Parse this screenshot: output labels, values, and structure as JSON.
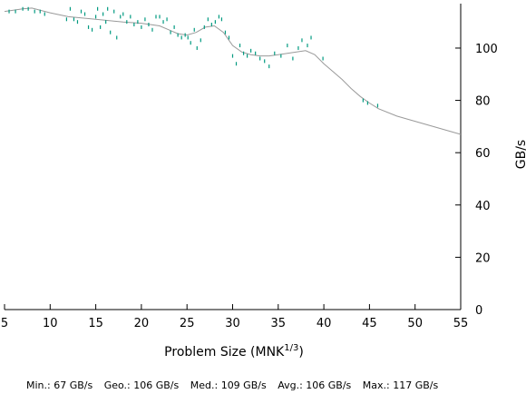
{
  "chart_data": {
    "type": "scatter",
    "xlabel_main": "Problem Size (MNK",
    "xlabel_sup": "1/3",
    "xlabel_close": ")",
    "ylabel": "GB/s",
    "xlim": [
      5,
      55
    ],
    "ylim": [
      0,
      117
    ],
    "x_ticks": [
      5,
      10,
      15,
      20,
      25,
      30,
      35,
      40,
      45,
      50,
      55
    ],
    "y_ticks": [
      0,
      20,
      40,
      60,
      80,
      100
    ],
    "grid": false,
    "y_axis_side": "right",
    "colors": {
      "points": "#009a80",
      "curve": "#9a9a9a",
      "axes": "#000000"
    },
    "points": [
      [
        5.5,
        114
      ],
      [
        6.2,
        114
      ],
      [
        7.0,
        115
      ],
      [
        7.6,
        115
      ],
      [
        8.3,
        114
      ],
      [
        8.9,
        114
      ],
      [
        9.4,
        113
      ],
      [
        11.8,
        111
      ],
      [
        12.2,
        115
      ],
      [
        12.6,
        111
      ],
      [
        13.0,
        110
      ],
      [
        13.4,
        114
      ],
      [
        13.8,
        113
      ],
      [
        14.2,
        108
      ],
      [
        14.6,
        107
      ],
      [
        15.0,
        112
      ],
      [
        15.2,
        115
      ],
      [
        15.5,
        108
      ],
      [
        15.8,
        113
      ],
      [
        16.1,
        110
      ],
      [
        16.3,
        115
      ],
      [
        16.6,
        106
      ],
      [
        17.0,
        114
      ],
      [
        17.3,
        104
      ],
      [
        17.7,
        112
      ],
      [
        18.0,
        113
      ],
      [
        18.4,
        110
      ],
      [
        18.8,
        112
      ],
      [
        19.2,
        109
      ],
      [
        19.6,
        110
      ],
      [
        20.0,
        108
      ],
      [
        20.4,
        111
      ],
      [
        20.8,
        109
      ],
      [
        21.2,
        107
      ],
      [
        21.6,
        112
      ],
      [
        22.0,
        112
      ],
      [
        22.4,
        110
      ],
      [
        22.8,
        111
      ],
      [
        23.2,
        106
      ],
      [
        23.6,
        108
      ],
      [
        24.0,
        105
      ],
      [
        24.4,
        104
      ],
      [
        24.8,
        105
      ],
      [
        25.1,
        104
      ],
      [
        25.4,
        102
      ],
      [
        25.8,
        107
      ],
      [
        26.1,
        100
      ],
      [
        26.5,
        103
      ],
      [
        26.9,
        108
      ],
      [
        27.3,
        111
      ],
      [
        27.7,
        109
      ],
      [
        28.1,
        110
      ],
      [
        28.5,
        112
      ],
      [
        28.8,
        111
      ],
      [
        29.2,
        106
      ],
      [
        29.6,
        104
      ],
      [
        30.0,
        97
      ],
      [
        30.4,
        94
      ],
      [
        30.8,
        101
      ],
      [
        31.2,
        98
      ],
      [
        31.6,
        97
      ],
      [
        32.0,
        99
      ],
      [
        32.5,
        98
      ],
      [
        33.0,
        96
      ],
      [
        33.5,
        95
      ],
      [
        34.0,
        93
      ],
      [
        34.6,
        98
      ],
      [
        35.3,
        97
      ],
      [
        36.0,
        101
      ],
      [
        36.6,
        96
      ],
      [
        37.2,
        100
      ],
      [
        37.6,
        103
      ],
      [
        38.2,
        101
      ],
      [
        38.6,
        104
      ],
      [
        39.9,
        96
      ],
      [
        44.3,
        80
      ],
      [
        44.8,
        79
      ],
      [
        45.9,
        78
      ]
    ],
    "curve": [
      [
        5.0,
        114
      ],
      [
        7.0,
        115
      ],
      [
        8.0,
        115.3
      ],
      [
        10.0,
        113.5
      ],
      [
        12.0,
        112
      ],
      [
        15.0,
        111
      ],
      [
        18.0,
        110
      ],
      [
        20.0,
        109.5
      ],
      [
        22.0,
        108.5
      ],
      [
        23.0,
        107
      ],
      [
        24.0,
        105.5
      ],
      [
        25.0,
        105
      ],
      [
        26.0,
        106
      ],
      [
        27.0,
        108
      ],
      [
        28.0,
        108.5
      ],
      [
        29.0,
        106
      ],
      [
        30.0,
        101
      ],
      [
        31.0,
        98.5
      ],
      [
        32.0,
        97.5
      ],
      [
        33.0,
        97
      ],
      [
        34.0,
        97
      ],
      [
        35.0,
        97.5
      ],
      [
        36.0,
        98
      ],
      [
        37.0,
        98.5
      ],
      [
        38.0,
        99
      ],
      [
        39.0,
        97.5
      ],
      [
        40.0,
        94
      ],
      [
        41.0,
        91
      ],
      [
        42.0,
        88
      ],
      [
        43.0,
        84.5
      ],
      [
        44.0,
        81.5
      ],
      [
        45.0,
        79
      ],
      [
        46.0,
        76.8
      ],
      [
        48.0,
        74
      ],
      [
        50.0,
        72
      ],
      [
        52.0,
        70
      ],
      [
        55.0,
        67
      ]
    ]
  },
  "stats": {
    "min": "Min.: 67 GB/s",
    "geo": "Geo.: 106 GB/s",
    "med": "Med.: 109 GB/s",
    "avg": "Avg.: 106 GB/s",
    "max": "Max.: 117 GB/s"
  }
}
